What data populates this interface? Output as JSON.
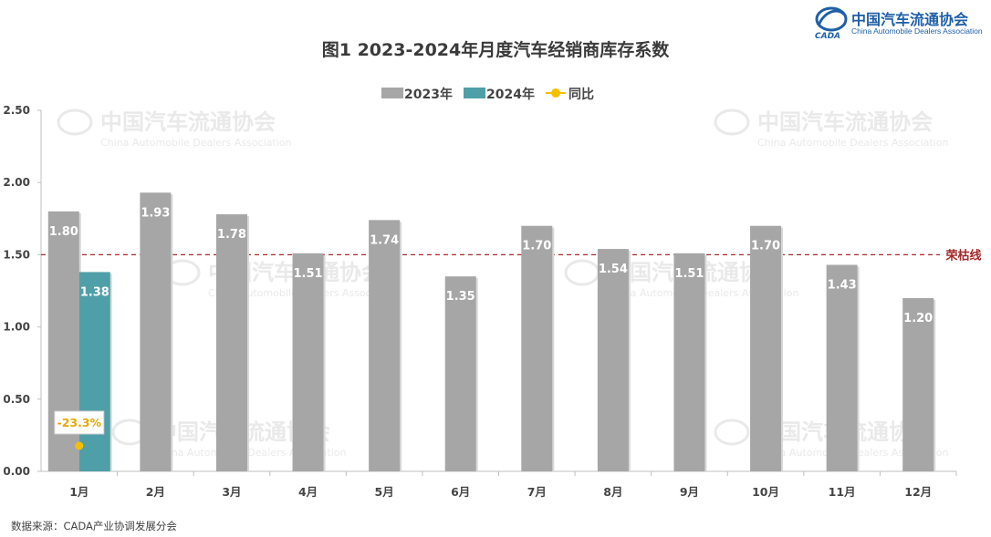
{
  "header": {
    "org_name": "中国汽车流通协会",
    "org_name_en": "China Automobile Dealers Association",
    "logo_text": "CADA"
  },
  "watermark": {
    "org_name": "中国汽车流通协会",
    "org_name_en": "China Automobile Dealers Association"
  },
  "source_note": "数据来源：CADA产业协调发展分会",
  "chart_data": {
    "type": "bar",
    "title": "图1  2023-2024年月度汽车经销商库存系数",
    "categories": [
      "1月",
      "2月",
      "3月",
      "4月",
      "5月",
      "6月",
      "7月",
      "8月",
      "9月",
      "10月",
      "11月",
      "12月"
    ],
    "series": [
      {
        "name": "2023年",
        "color": "#a6a6a6",
        "values": [
          1.8,
          1.93,
          1.78,
          1.51,
          1.74,
          1.35,
          1.7,
          1.54,
          1.51,
          1.7,
          1.43,
          1.2
        ]
      },
      {
        "name": "2024年",
        "color": "#4f9fa8",
        "values": [
          1.38,
          null,
          null,
          null,
          null,
          null,
          null,
          null,
          null,
          null,
          null,
          null
        ]
      }
    ],
    "yoy": {
      "name": "同比",
      "color": "#f5c000",
      "values": [
        -0.233
      ],
      "labels": [
        "-23.3%"
      ]
    },
    "value_labels": {
      "2023年": [
        "1.80",
        "1.93",
        "1.78",
        "1.51",
        "1.74",
        "1.35",
        "1.70",
        "1.54",
        "1.51",
        "1.70",
        "1.43",
        "1.20"
      ],
      "2024年": [
        "1.38"
      ]
    },
    "reference_line": {
      "value": 1.5,
      "label": "荣枯线",
      "color": "#a52a2a"
    },
    "y_ticks": [
      "0.00",
      "0.50",
      "1.00",
      "1.50",
      "2.00",
      "2.50"
    ],
    "ylim": [
      0,
      2.5
    ],
    "legend_position": "top-center",
    "grid": false
  }
}
